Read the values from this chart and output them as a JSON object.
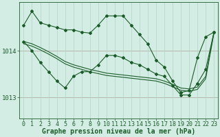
{
  "title": "Graphe pression niveau de la mer (hPa)",
  "background_color": "#d4ede4",
  "grid_color": "#afd4c8",
  "line_color": "#1a5c28",
  "hours": [
    0,
    1,
    2,
    3,
    4,
    5,
    6,
    7,
    8,
    9,
    10,
    11,
    12,
    13,
    14,
    15,
    16,
    17,
    18,
    19,
    20,
    21,
    22,
    23
  ],
  "s1": [
    1014.55,
    1014.85,
    1014.6,
    1014.55,
    1014.5,
    1014.45,
    1014.45,
    1014.4,
    1014.38,
    1014.55,
    1014.75,
    1014.75,
    1014.75,
    1014.55,
    1014.35,
    1014.15,
    1013.8,
    1013.65,
    1013.35,
    1013.1,
    1013.15,
    1013.85,
    1014.3,
    1014.4
  ],
  "s2": [
    1014.2,
    1014.0,
    1013.75,
    1013.55,
    1013.35,
    1013.2,
    1013.45,
    1013.55,
    1013.55,
    1013.7,
    1013.9,
    1013.9,
    1013.85,
    1013.75,
    1013.7,
    1013.6,
    1013.5,
    1013.45,
    1013.25,
    1013.05,
    1013.05,
    1013.3,
    1013.6,
    1014.4
  ],
  "s3_start": 0,
  "s3": [
    1014.2,
    1014.15,
    1014.07,
    1013.98,
    1013.88,
    1013.77,
    1013.7,
    1013.65,
    1013.6,
    1013.56,
    1013.52,
    1013.5,
    1013.48,
    1013.46,
    1013.44,
    1013.42,
    1013.4,
    1013.35,
    1013.28,
    1013.2,
    1013.18,
    1013.22,
    1013.45,
    1014.4
  ],
  "s4": [
    1014.15,
    1014.1,
    1014.02,
    1013.93,
    1013.83,
    1013.72,
    1013.65,
    1013.6,
    1013.55,
    1013.51,
    1013.47,
    1013.45,
    1013.43,
    1013.41,
    1013.39,
    1013.37,
    1013.35,
    1013.3,
    1013.23,
    1013.15,
    1013.13,
    1013.17,
    1013.4,
    1014.38
  ],
  "ylim": [
    1012.55,
    1015.05
  ],
  "yticks": [
    1013.0,
    1014.0
  ],
  "xlim": [
    -0.5,
    23.5
  ],
  "label_fontsize": 6.5,
  "title_fontsize": 7.0
}
